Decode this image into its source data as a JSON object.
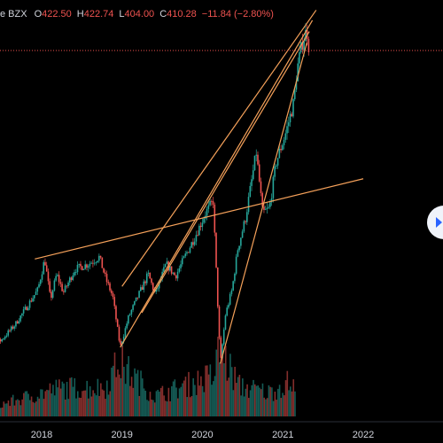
{
  "legend": {
    "symbol": "e BZX",
    "open_label": "O",
    "open": "422.50",
    "high_label": "H",
    "high": "422.74",
    "low_label": "L",
    "low": "404.00",
    "close_label": "C",
    "close": "410.28",
    "change": "−11.84 (−2.80%)"
  },
  "chart_data": {
    "type": "candlestick",
    "x_ticks": [
      "2018",
      "2019",
      "2020",
      "2021",
      "2022"
    ],
    "y_range": [
      50,
      460
    ],
    "grid": false,
    "colors": {
      "up": "#26a69a",
      "down": "#ef5350",
      "trendline": "#f5a15a",
      "price_line": "#ef5350",
      "background": "#000000",
      "axis_text": "#d1d4dc"
    },
    "price_path": [
      [
        "2017-03-01",
        112
      ],
      [
        "2017-05-01",
        118
      ],
      [
        "2017-07-01",
        125
      ],
      [
        "2017-09-01",
        140
      ],
      [
        "2017-11-01",
        160
      ],
      [
        "2017-12-15",
        175
      ],
      [
        "2018-01-15",
        205
      ],
      [
        "2018-02-10",
        165
      ],
      [
        "2018-03-10",
        190
      ],
      [
        "2018-04-10",
        172
      ],
      [
        "2018-06-01",
        195
      ],
      [
        "2018-08-01",
        200
      ],
      [
        "2018-09-20",
        207
      ],
      [
        "2018-10-20",
        185
      ],
      [
        "2018-11-20",
        168
      ],
      [
        "2018-12-24",
        118
      ],
      [
        "2019-01-31",
        148
      ],
      [
        "2019-03-01",
        162
      ],
      [
        "2019-04-30",
        190
      ],
      [
        "2019-06-01",
        170
      ],
      [
        "2019-07-20",
        200
      ],
      [
        "2019-09-01",
        188
      ],
      [
        "2019-10-15",
        208
      ],
      [
        "2019-12-01",
        228
      ],
      [
        "2020-01-15",
        250
      ],
      [
        "2020-02-19",
        262
      ],
      [
        "2020-03-23",
        102
      ],
      [
        "2020-04-15",
        150
      ],
      [
        "2020-05-15",
        175
      ],
      [
        "2020-06-10",
        215
      ],
      [
        "2020-07-15",
        245
      ],
      [
        "2020-09-02",
        310
      ],
      [
        "2020-10-01",
        250
      ],
      [
        "2020-11-01",
        255
      ],
      [
        "2020-12-01",
        300
      ],
      [
        "2021-01-15",
        330
      ],
      [
        "2021-02-20",
        360
      ],
      [
        "2021-03-05",
        390
      ],
      [
        "2021-04-01",
        420
      ],
      [
        "2021-04-20",
        430
      ],
      [
        "2021-05-01",
        410
      ]
    ],
    "volume": [
      [
        "2017-06-01",
        0.15
      ],
      [
        "2018-02-10",
        0.38
      ],
      [
        "2018-04-01",
        0.42
      ],
      [
        "2018-10-15",
        0.42
      ],
      [
        "2018-12-20",
        0.82
      ],
      [
        "2019-01-15",
        0.7
      ],
      [
        "2019-06-01",
        0.3
      ],
      [
        "2020-02-25",
        0.6
      ],
      [
        "2020-03-16",
        1.0
      ],
      [
        "2020-03-25",
        0.95
      ],
      [
        "2020-06-15",
        0.45
      ],
      [
        "2020-10-28",
        0.35
      ],
      [
        "2021-01-27",
        0.5
      ],
      [
        "2021-03-01",
        0.4
      ]
    ],
    "trendlines": [
      {
        "from": [
          "2017-12-01",
          205
        ],
        "to": [
          "2022-01-01",
          284
        ]
      },
      {
        "from": [
          "2019-01-01",
          178
        ],
        "to": [
          "2021-06-01",
          450
        ]
      },
      {
        "from": [
          "2018-12-24",
          118
        ],
        "to": [
          "2021-05-15",
          440
        ]
      },
      {
        "from": [
          "2020-03-23",
          102
        ],
        "to": [
          "2021-04-20",
          418
        ]
      },
      {
        "from": [
          "2019-04-01",
          152
        ],
        "to": [
          "2021-05-01",
          429
        ]
      }
    ],
    "price_line": 410.28
  }
}
